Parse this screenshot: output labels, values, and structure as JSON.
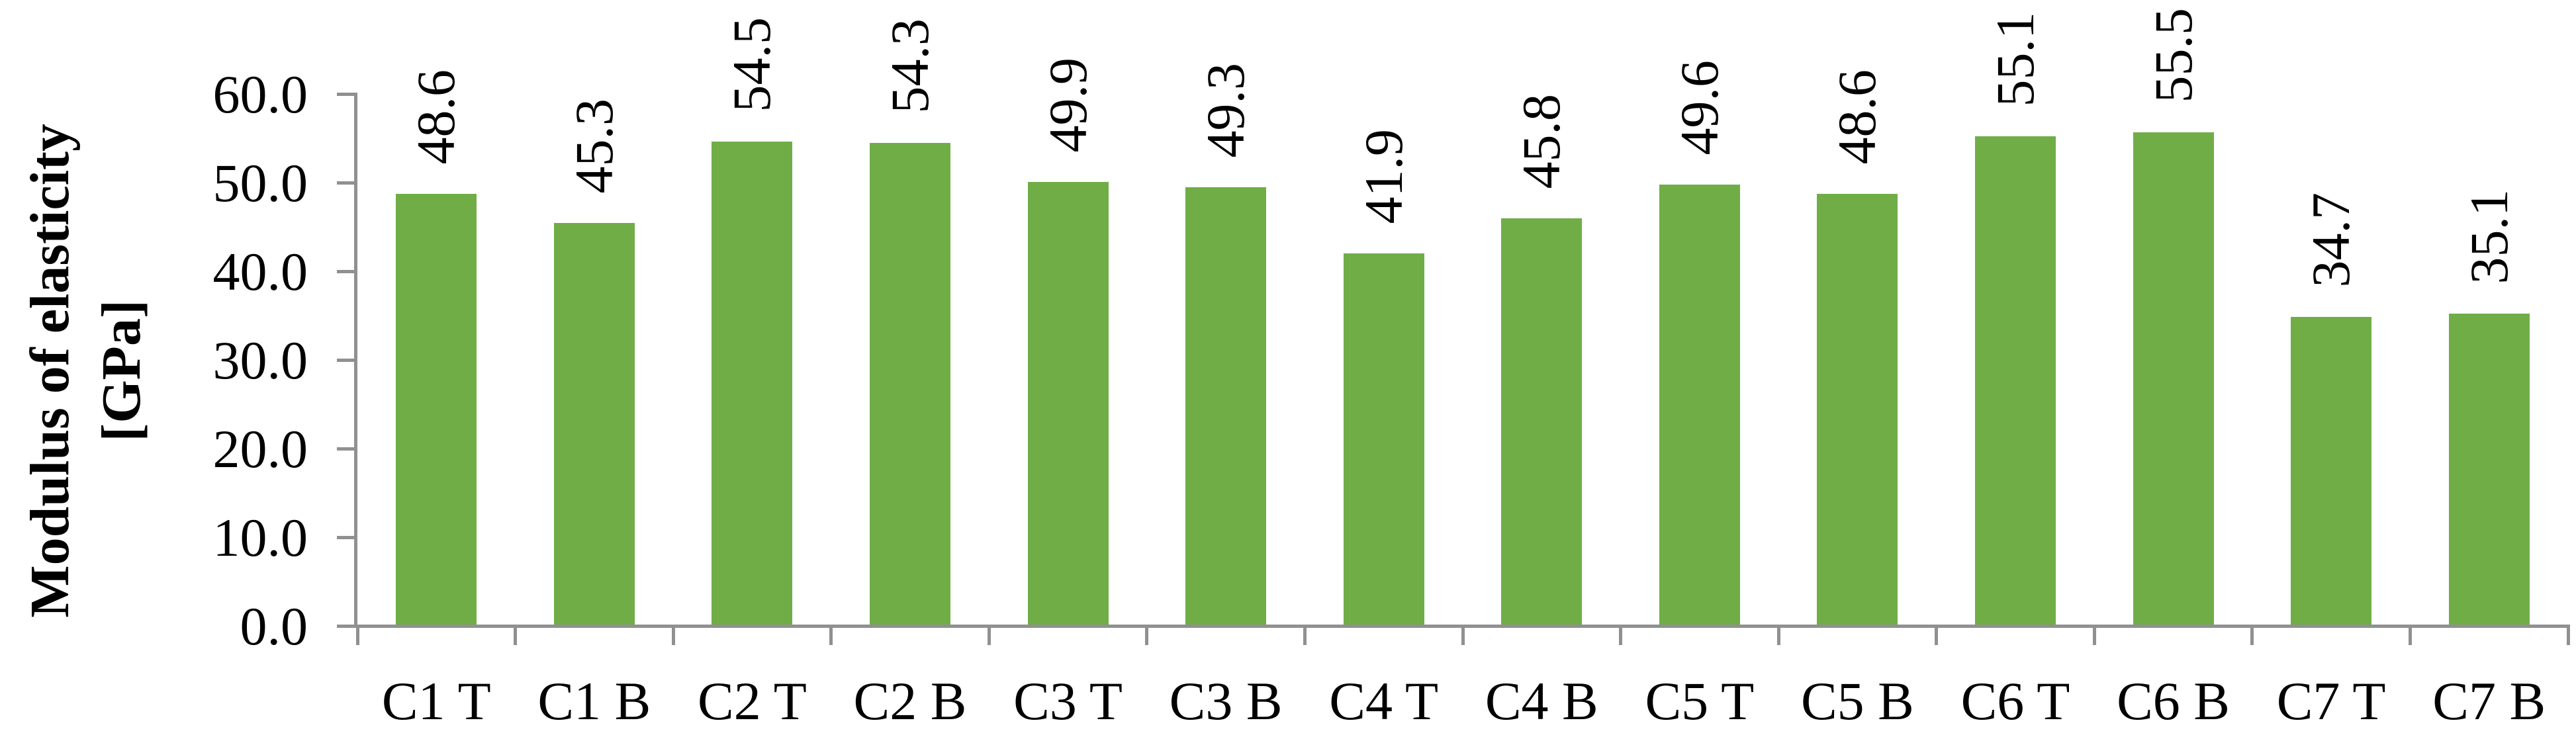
{
  "chart_data": {
    "type": "bar",
    "categories": [
      "C1 T",
      "C1 B",
      "C2 T",
      "C2 B",
      "C3 T",
      "C3 B",
      "C4 T",
      "C4 B",
      "C5 T",
      "C5 B",
      "C6 T",
      "C6 B",
      "C7 T",
      "C7 B"
    ],
    "values": [
      48.6,
      45.3,
      54.5,
      54.3,
      49.9,
      49.3,
      41.9,
      45.8,
      49.6,
      48.6,
      55.1,
      55.5,
      34.7,
      35.1
    ],
    "value_labels": [
      "48.6",
      "45.3",
      "54.5",
      "54.3",
      "49.9",
      "49.3",
      "41.9",
      "45.8",
      "49.6",
      "48.6",
      "55.1",
      "55.5",
      "34.7",
      "35.1"
    ],
    "title": "",
    "xlabel": "",
    "ylabel": "Modulus of elasticity\n[GPa]",
    "y_ticks": [
      "0.0",
      "10.0",
      "20.0",
      "30.0",
      "40.0",
      "50.0",
      "60.0"
    ],
    "ylim": [
      0,
      60
    ],
    "grid": false,
    "value_label_rotation_deg": 90,
    "bar_color": "#70AD47",
    "axis_color": "#909090",
    "text_color": "#000000"
  }
}
